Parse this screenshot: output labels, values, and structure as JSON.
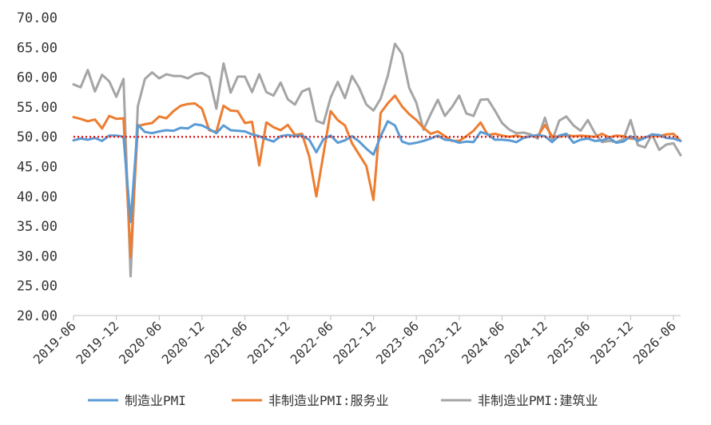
{
  "chart_data": {
    "type": "line",
    "title": "",
    "xlabel": "",
    "ylabel": "",
    "ylim": [
      20,
      70
    ],
    "yticks": [
      "20.00",
      "25.00",
      "30.00",
      "35.00",
      "40.00",
      "45.00",
      "50.00",
      "55.00",
      "60.00",
      "65.00",
      "70.00"
    ],
    "x_tick_labels": [
      "2019-06",
      "2019-12",
      "2020-06",
      "2020-12",
      "2021-06",
      "2021-12",
      "2022-06",
      "2022-12",
      "2023-06",
      "2023-12",
      "2024-06",
      "2024-12",
      "2025-06",
      "2025-12",
      "2026-06"
    ],
    "x": [
      "2019-06",
      "2019-07",
      "2019-08",
      "2019-09",
      "2019-10",
      "2019-11",
      "2019-12",
      "2020-01",
      "2020-02",
      "2020-03",
      "2020-04",
      "2020-05",
      "2020-06",
      "2020-07",
      "2020-08",
      "2020-09",
      "2020-10",
      "2020-11",
      "2020-12",
      "2021-01",
      "2021-02",
      "2021-03",
      "2021-04",
      "2021-05",
      "2021-06",
      "2021-07",
      "2021-08",
      "2021-09",
      "2021-10",
      "2021-11",
      "2021-12",
      "2022-01",
      "2022-02",
      "2022-03",
      "2022-04",
      "2022-05",
      "2022-06",
      "2022-07",
      "2022-08",
      "2022-09",
      "2022-10",
      "2022-11",
      "2022-12",
      "2023-01",
      "2023-02",
      "2023-03",
      "2023-04",
      "2023-05",
      "2023-06",
      "2023-07",
      "2023-08",
      "2023-09",
      "2023-10",
      "2023-11",
      "2023-12",
      "2024-01",
      "2024-02",
      "2024-03",
      "2024-04",
      "2024-05",
      "2024-06",
      "2024-07",
      "2024-08",
      "2024-09",
      "2024-10",
      "2024-11",
      "2024-12",
      "2025-01",
      "2025-02",
      "2025-03",
      "2025-04",
      "2025-05",
      "2025-06",
      "2025-07",
      "2025-08",
      "2025-09",
      "2025-10",
      "2025-11",
      "2025-12",
      "2026-01",
      "2026-02",
      "2026-03",
      "2026-04",
      "2026-05",
      "2026-06",
      "2026-07"
    ],
    "series": [
      {
        "name": "制造业PMI",
        "color": "#5B9BD5",
        "values": [
          49.4,
          49.7,
          49.5,
          49.8,
          49.3,
          50.2,
          50.2,
          50.0,
          35.7,
          52.0,
          50.8,
          50.6,
          50.9,
          51.1,
          51.0,
          51.5,
          51.4,
          52.1,
          51.9,
          51.3,
          50.6,
          51.9,
          51.1,
          51.0,
          50.9,
          50.4,
          50.1,
          49.6,
          49.2,
          50.1,
          50.3,
          50.1,
          50.2,
          49.5,
          47.4,
          49.6,
          50.2,
          49.0,
          49.4,
          50.1,
          49.2,
          48.0,
          47.0,
          50.1,
          52.6,
          51.9,
          49.2,
          48.8,
          49.0,
          49.3,
          49.7,
          50.2,
          49.5,
          49.4,
          49.0,
          49.2,
          49.1,
          50.8,
          50.4,
          49.5,
          49.5,
          49.4,
          49.1,
          49.8,
          50.1,
          50.3,
          50.1,
          49.1,
          50.2,
          50.5,
          49.0,
          49.5,
          49.7,
          49.3,
          49.4,
          49.8,
          49.0,
          49.2,
          50.1,
          49.3,
          49.8,
          50.4,
          50.3,
          49.8,
          49.7,
          49.3
        ]
      },
      {
        "name": "非制造业PMI:服务业",
        "color": "#ED7D31",
        "values": [
          53.3,
          53.0,
          52.6,
          52.9,
          51.4,
          53.5,
          53.0,
          53.1,
          29.8,
          51.8,
          52.1,
          52.3,
          53.4,
          53.1,
          54.3,
          55.2,
          55.5,
          55.6,
          54.7,
          51.1,
          50.8,
          55.2,
          54.4,
          54.3,
          52.3,
          52.5,
          45.2,
          52.4,
          51.6,
          51.1,
          52.0,
          50.3,
          50.5,
          46.7,
          40.0,
          47.1,
          54.3,
          52.8,
          51.9,
          48.9,
          47.0,
          45.1,
          39.4,
          54.0,
          55.6,
          56.9,
          55.1,
          53.8,
          52.8,
          51.5,
          50.5,
          50.9,
          50.1,
          49.3,
          49.3,
          50.1,
          51.0,
          52.4,
          50.3,
          50.5,
          50.2,
          50.0,
          50.2,
          49.9,
          50.1,
          50.1,
          52.0,
          50.1,
          50.0,
          50.3,
          50.1,
          50.2,
          50.1,
          50.0,
          50.5,
          49.9,
          50.2,
          50.1,
          49.7,
          49.6,
          49.9,
          50.2,
          50.1,
          50.4,
          50.5,
          49.3
        ]
      },
      {
        "name": "非制造业PMI:建筑业",
        "color": "#A5A5A5",
        "values": [
          58.8,
          58.3,
          61.2,
          57.6,
          60.4,
          59.3,
          56.7,
          59.7,
          26.6,
          55.1,
          59.7,
          60.8,
          59.8,
          60.5,
          60.2,
          60.2,
          59.8,
          60.5,
          60.7,
          60.0,
          54.7,
          62.3,
          57.4,
          60.1,
          60.1,
          57.5,
          60.5,
          57.5,
          56.9,
          59.1,
          56.3,
          55.4,
          57.6,
          58.1,
          52.7,
          52.2,
          56.6,
          59.2,
          56.5,
          60.2,
          58.2,
          55.4,
          54.4,
          56.4,
          60.2,
          65.6,
          63.9,
          58.2,
          55.7,
          51.2,
          53.8,
          56.2,
          53.5,
          55.0,
          56.9,
          53.9,
          53.5,
          56.2,
          56.3,
          54.4,
          52.3,
          51.2,
          50.6,
          50.7,
          50.4,
          49.7,
          53.2,
          49.3,
          52.7,
          53.4,
          51.9,
          51.0,
          52.8,
          50.6,
          49.1,
          49.3,
          49.1,
          49.6,
          52.8,
          48.6,
          48.2,
          50.4,
          47.8,
          48.7,
          48.9,
          46.9
        ]
      }
    ],
    "reference_line": {
      "value": 50,
      "color": "#E01F1F",
      "style": "dotted"
    },
    "grid": false,
    "legend_position": "bottom"
  }
}
